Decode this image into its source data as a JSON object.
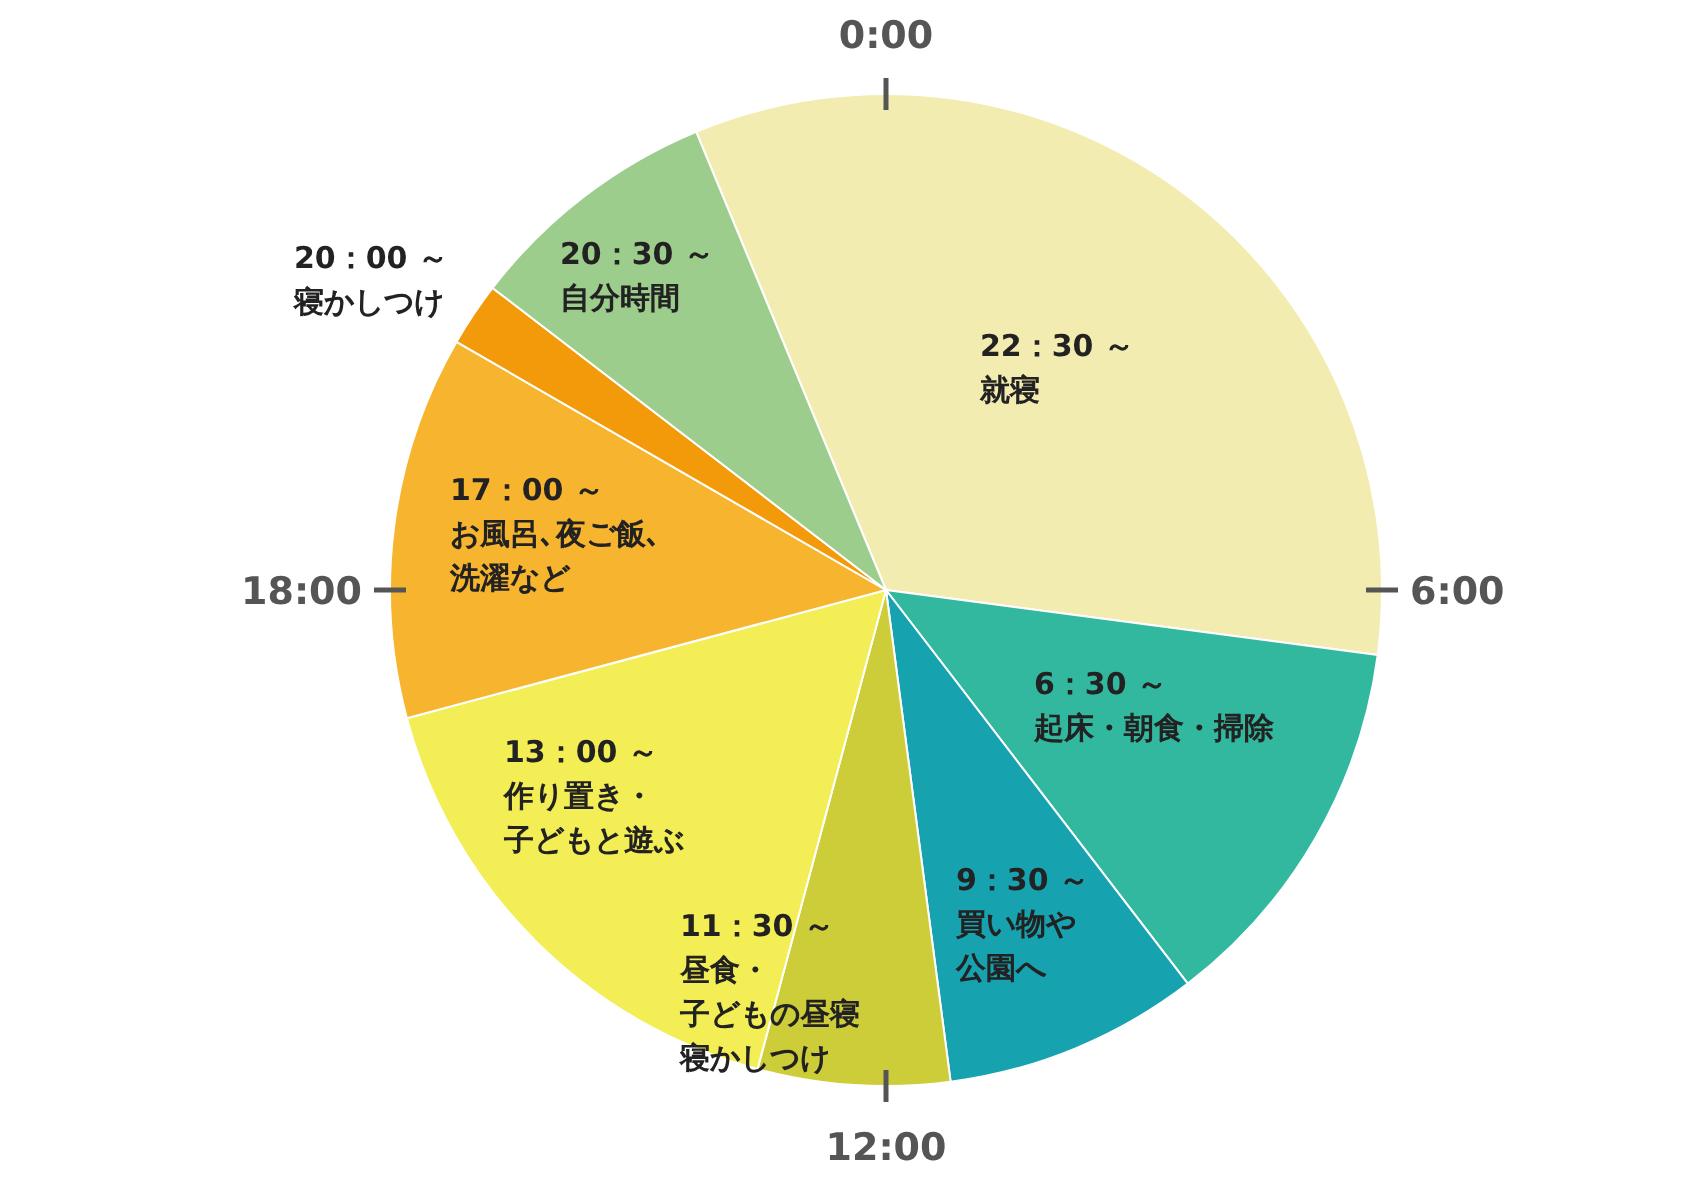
{
  "chart_data": {
    "type": "pie",
    "categories": [
      "22：30 ～就寝",
      "6：30 ～起床・朝食・掃除",
      "9：30 ～買い物や公園へ",
      "11：30 ～昼食・子どもの昼寝寝かしつけ",
      "13：00 ～作り置き・子どもと遊ぶ",
      "17：00 ～お風呂､夜ご飯､洗濯など",
      "20：00 ～寝かしつけ",
      "20：30 ～自分時間"
    ],
    "values": [
      33.34,
      12.5,
      8.33,
      6.25,
      16.67,
      12.5,
      2.08,
      8.33
    ],
    "colors": [
      "#f3ecb0",
      "#33b8a0",
      "#17a2b0",
      "#cdcd3a",
      "#f3ee55",
      "#f7b52f",
      "#f39a0a",
      "#9ccd8c"
    ],
    "annotations": [
      "0:00",
      "6:00",
      "12:00",
      "18:00"
    ]
  }
}
